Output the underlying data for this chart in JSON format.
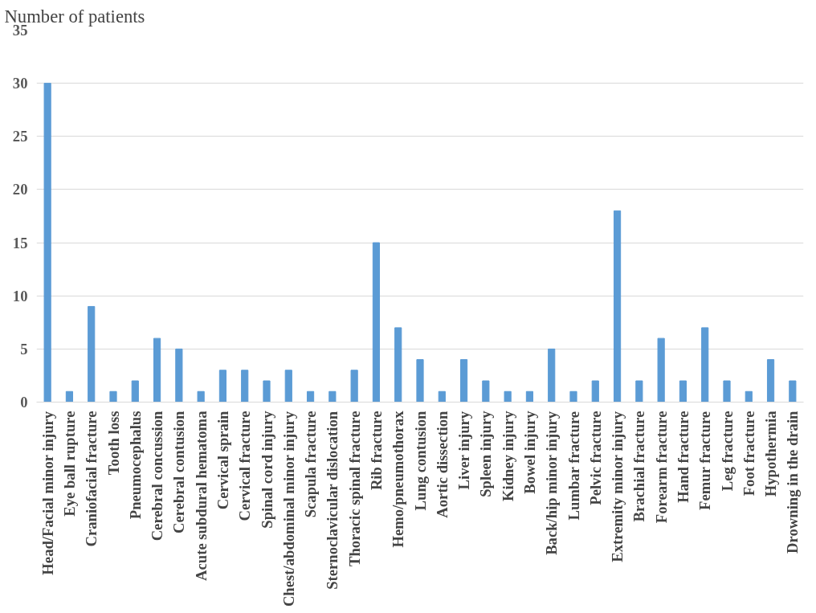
{
  "chart_data": {
    "type": "bar",
    "ylabel": "Number of patients",
    "categories": [
      "Head/Facial minor injury",
      "Eye ball rupture",
      "Craniofacial fracture",
      "Tooth loss",
      "Pneumocephalus",
      "Cerebral concussion",
      "Cerebral contusion",
      "Acute subdural hematoma",
      "Cervical sprain",
      "Cervical fracture",
      "Spinal cord injury",
      "Chest/abdominal minor injury",
      "Scapula fracture",
      "Sternoclavicular dislocation",
      "Thoracic spinal fracture",
      "Rib fracture",
      "Hemo/pneumothorax",
      "Lung contusion",
      "Aortic dissection",
      "Liver injury",
      "Spleen injury",
      "Kidney injury",
      "Bowel injury",
      "Back/hip minor injury",
      "Lumbar fracture",
      "Pelvic fracture",
      "Extremity minor injury",
      "Brachial fracture",
      "Forearm fracture",
      "Hand fracture",
      "Femur fracture",
      "Leg fracture",
      "Foot fracture",
      "Hypothermia",
      "Drowning in the drain"
    ],
    "values": [
      30,
      1,
      9,
      1,
      2,
      6,
      5,
      1,
      3,
      3,
      2,
      3,
      1,
      1,
      3,
      15,
      7,
      4,
      1,
      4,
      2,
      1,
      1,
      5,
      1,
      2,
      18,
      2,
      6,
      2,
      7,
      2,
      1,
      4,
      2
    ],
    "color": "#5b9bd5",
    "ylim": [
      0,
      35
    ],
    "yticks": [
      0,
      5,
      10,
      15,
      20,
      25,
      30,
      35
    ],
    "grid": "y"
  }
}
